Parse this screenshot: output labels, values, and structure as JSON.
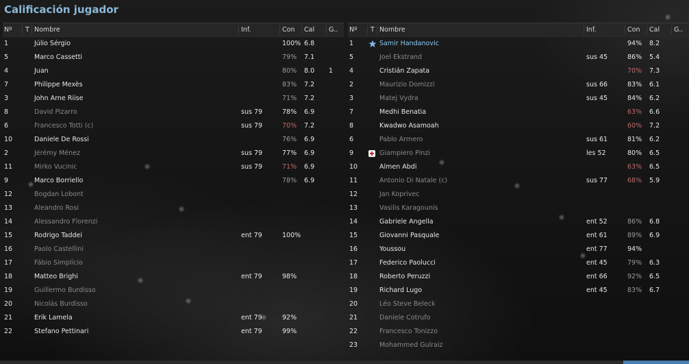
{
  "title": "Calificación jugador",
  "headers": {
    "no": "Nº",
    "t": "T",
    "name": "Nombre",
    "inf": "Inf.",
    "con": "Con",
    "cal": "Cal",
    "g": "G.."
  },
  "left": [
    {
      "no": "1",
      "name": "Júlio Sérgio",
      "inf": "",
      "con": "100%",
      "cal": "6.8",
      "g": "",
      "muted": false
    },
    {
      "no": "5",
      "name": "Marco Cassetti",
      "inf": "",
      "con": "79%",
      "cal": "7.1",
      "g": "",
      "muted": false,
      "conmuted": true
    },
    {
      "no": "4",
      "name": "Juan",
      "inf": "",
      "con": "80%",
      "cal": "8.0",
      "g": "1",
      "muted": false,
      "conmuted": true
    },
    {
      "no": "7",
      "name": "Philippe Mexès",
      "inf": "",
      "con": "83%",
      "cal": "7.2",
      "g": "",
      "muted": false,
      "conmuted": true
    },
    {
      "no": "3",
      "name": "John Arne Riise",
      "inf": "",
      "con": "71%",
      "cal": "7.2",
      "g": "",
      "muted": false,
      "conmuted": true
    },
    {
      "no": "8",
      "name": "David Pizarro",
      "inf": "sus 79",
      "con": "78%",
      "cal": "6.9",
      "g": "",
      "muted": true
    },
    {
      "no": "6",
      "name": "Francesco Totti (c)",
      "inf": "sus 79",
      "con": "70%",
      "cal": "7.2",
      "g": "",
      "muted": true,
      "conred": true
    },
    {
      "no": "10",
      "name": "Daniele De Rossi",
      "inf": "",
      "con": "76%",
      "cal": "6.9",
      "g": "",
      "muted": false,
      "conmuted": true
    },
    {
      "no": "2",
      "name": "Jérémy Ménez",
      "inf": "sus 79",
      "con": "77%",
      "cal": "6.9",
      "g": "",
      "muted": true
    },
    {
      "no": "11",
      "name": "Mirko Vucinic",
      "inf": "sus 79",
      "con": "71%",
      "cal": "6.9",
      "g": "",
      "muted": true,
      "conred": true
    },
    {
      "no": "9",
      "name": "Marco Borriello",
      "inf": "",
      "con": "78%",
      "cal": "6.9",
      "g": "",
      "muted": false,
      "conmuted": true
    },
    {
      "no": "12",
      "name": "Bogdan Lobont",
      "inf": "",
      "con": "",
      "cal": "",
      "g": "",
      "muted": true
    },
    {
      "no": "13",
      "name": "Aleandro Rosi",
      "inf": "",
      "con": "",
      "cal": "",
      "g": "",
      "muted": true
    },
    {
      "no": "14",
      "name": "Alessandro Florenzi",
      "inf": "",
      "con": "",
      "cal": "",
      "g": "",
      "muted": true
    },
    {
      "no": "15",
      "name": "Rodrigo Taddei",
      "inf": "ent 79",
      "con": "100%",
      "cal": "",
      "g": "",
      "muted": false
    },
    {
      "no": "16",
      "name": "Paolo Castellini",
      "inf": "",
      "con": "",
      "cal": "",
      "g": "",
      "muted": true
    },
    {
      "no": "17",
      "name": "Fábio Simplício",
      "inf": "",
      "con": "",
      "cal": "",
      "g": "",
      "muted": true
    },
    {
      "no": "18",
      "name": "Matteo Brighi",
      "inf": "ent 79",
      "con": "98%",
      "cal": "",
      "g": "",
      "muted": false
    },
    {
      "no": "19",
      "name": "Guillermo Burdisso",
      "inf": "",
      "con": "",
      "cal": "",
      "g": "",
      "muted": true
    },
    {
      "no": "20",
      "name": "Nicolás Burdisso",
      "inf": "",
      "con": "",
      "cal": "",
      "g": "",
      "muted": true
    },
    {
      "no": "21",
      "name": "Erik Lamela",
      "inf": "ent 79",
      "con": "92%",
      "cal": "",
      "g": "",
      "muted": false
    },
    {
      "no": "22",
      "name": "Stefano Pettinari",
      "inf": "ent 79",
      "con": "99%",
      "cal": "",
      "g": "",
      "muted": false
    }
  ],
  "right": [
    {
      "no": "1",
      "name": "Samir Handanovic",
      "inf": "",
      "con": "94%",
      "cal": "8.2",
      "g": "",
      "muted": false,
      "highlight": true,
      "icon": "star"
    },
    {
      "no": "5",
      "name": "Joel Ekstrand",
      "inf": "sus 45",
      "con": "86%",
      "cal": "5.4",
      "g": "",
      "muted": true
    },
    {
      "no": "4",
      "name": "Cristián Zapata",
      "inf": "",
      "con": "70%",
      "cal": "7.3",
      "g": "",
      "muted": false,
      "conred": true
    },
    {
      "no": "2",
      "name": "Maurizio Domizzi",
      "inf": "sus 66",
      "con": "83%",
      "cal": "6.1",
      "g": "",
      "muted": true
    },
    {
      "no": "3",
      "name": "Matej Vydra",
      "inf": "sus 45",
      "con": "84%",
      "cal": "6.2",
      "g": "",
      "muted": true
    },
    {
      "no": "7",
      "name": "Medhi Benatia",
      "inf": "",
      "con": "63%",
      "cal": "6.6",
      "g": "",
      "muted": false,
      "conred": true
    },
    {
      "no": "8",
      "name": "Kwadwo Asamoah",
      "inf": "",
      "con": "60%",
      "cal": "7.2",
      "g": "",
      "muted": false,
      "conred": true
    },
    {
      "no": "6",
      "name": "Pablo Armero",
      "inf": "sus 61",
      "con": "81%",
      "cal": "6.2",
      "g": "",
      "muted": true
    },
    {
      "no": "9",
      "name": "Giampiero Pinzi",
      "inf": "les 52",
      "con": "80%",
      "cal": "6.5",
      "g": "",
      "muted": true,
      "icon": "injury"
    },
    {
      "no": "10",
      "name": "Almen Abdi",
      "inf": "",
      "con": "63%",
      "cal": "6.5",
      "g": "",
      "muted": false,
      "conred": true
    },
    {
      "no": "11",
      "name": "Antonio Di Natale (c)",
      "inf": "sus 77",
      "con": "68%",
      "cal": "5.9",
      "g": "",
      "muted": true,
      "conred": true
    },
    {
      "no": "12",
      "name": "Jan Koprivec",
      "inf": "",
      "con": "",
      "cal": "",
      "g": "",
      "muted": true
    },
    {
      "no": "13",
      "name": "Vasilis Karagounis",
      "inf": "",
      "con": "",
      "cal": "",
      "g": "",
      "muted": true
    },
    {
      "no": "14",
      "name": "Gabriele Angella",
      "inf": "ent 52",
      "con": "86%",
      "cal": "6.8",
      "g": "",
      "muted": false,
      "conmuted": true
    },
    {
      "no": "15",
      "name": "Giovanni Pasquale",
      "inf": "ent 61",
      "con": "89%",
      "cal": "6.9",
      "g": "",
      "muted": false,
      "conmuted": true
    },
    {
      "no": "16",
      "name": "Youssou",
      "inf": "ent 77",
      "con": "94%",
      "cal": "",
      "g": "",
      "muted": false
    },
    {
      "no": "17",
      "name": "Federico Paolucci",
      "inf": "ent 45",
      "con": "79%",
      "cal": "6.3",
      "g": "",
      "muted": false,
      "conmuted": true
    },
    {
      "no": "18",
      "name": "Roberto Peruzzi",
      "inf": "ent 66",
      "con": "92%",
      "cal": "6.5",
      "g": "",
      "muted": false,
      "conmuted": true
    },
    {
      "no": "19",
      "name": "Richard Lugo",
      "inf": "ent 45",
      "con": "83%",
      "cal": "6.7",
      "g": "",
      "muted": false,
      "conmuted": true
    },
    {
      "no": "20",
      "name": "Léo Steve Beleck",
      "inf": "",
      "con": "",
      "cal": "",
      "g": "",
      "muted": true
    },
    {
      "no": "21",
      "name": "Daniele Cotrufo",
      "inf": "",
      "con": "",
      "cal": "",
      "g": "",
      "muted": true
    },
    {
      "no": "22",
      "name": "Francesco Tonizzo",
      "inf": "",
      "con": "",
      "cal": "",
      "g": "",
      "muted": true
    },
    {
      "no": "23",
      "name": "Mohammed Gulraiz",
      "inf": "",
      "con": "",
      "cal": "",
      "g": "",
      "muted": true
    }
  ]
}
